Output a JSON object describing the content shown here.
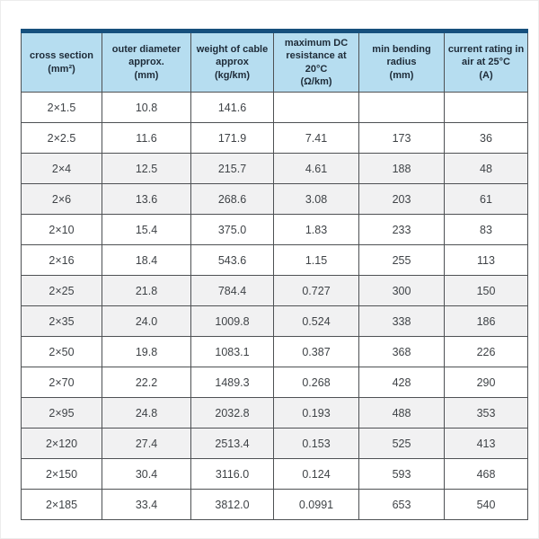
{
  "colors": {
    "header_bar": "#16507d",
    "header_bg": "#b6ddf0",
    "header_text": "#1e2b38",
    "body_text": "#3f4347",
    "border": "#4e5154",
    "stripe": "#f1f1f2",
    "page_bg": "#ffffff"
  },
  "table": {
    "columns": [
      {
        "id": "cross-section",
        "lines": [
          "cross section",
          "(mm²)"
        ]
      },
      {
        "id": "outer-diameter",
        "lines": [
          "outer diameter",
          "approx.",
          "(mm)"
        ]
      },
      {
        "id": "cable-weight",
        "lines": [
          "weight of cable",
          "approx",
          "(kg/km)"
        ]
      },
      {
        "id": "dc-resistance",
        "lines": [
          "maximum DC",
          "resistance at 20°C",
          "(Ω/km)"
        ]
      },
      {
        "id": "min-bending-radius",
        "lines": [
          "min bending",
          "radius",
          "(mm)"
        ]
      },
      {
        "id": "current-rating",
        "lines": [
          "current rating in",
          "air at 25°C",
          "(A)"
        ]
      }
    ],
    "rows": [
      [
        "2×1.5",
        "10.8",
        "141.6",
        "",
        "",
        ""
      ],
      [
        "2×2.5",
        "11.6",
        "171.9",
        "7.41",
        "173",
        "36"
      ],
      [
        "2×4",
        "12.5",
        "215.7",
        "4.61",
        "188",
        "48"
      ],
      [
        "2×6",
        "13.6",
        "268.6",
        "3.08",
        "203",
        "61"
      ],
      [
        "2×10",
        "15.4",
        "375.0",
        "1.83",
        "233",
        "83"
      ],
      [
        "2×16",
        "18.4",
        "543.6",
        "1.15",
        "255",
        "113"
      ],
      [
        "2×25",
        "21.8",
        "784.4",
        "0.727",
        "300",
        "150"
      ],
      [
        "2×35",
        "24.0",
        "1009.8",
        "0.524",
        "338",
        "186"
      ],
      [
        "2×50",
        "19.8",
        "1083.1",
        "0.387",
        "368",
        "226"
      ],
      [
        "2×70",
        "22.2",
        "1489.3",
        "0.268",
        "428",
        "290"
      ],
      [
        "2×95",
        "24.8",
        "2032.8",
        "0.193",
        "488",
        "353"
      ],
      [
        "2×120",
        "27.4",
        "2513.4",
        "0.153",
        "525",
        "413"
      ],
      [
        "2×150",
        "30.4",
        "3116.0",
        "0.124",
        "593",
        "468"
      ],
      [
        "2×185",
        "33.4",
        "3812.0",
        "0.0991",
        "653",
        "540"
      ]
    ]
  }
}
